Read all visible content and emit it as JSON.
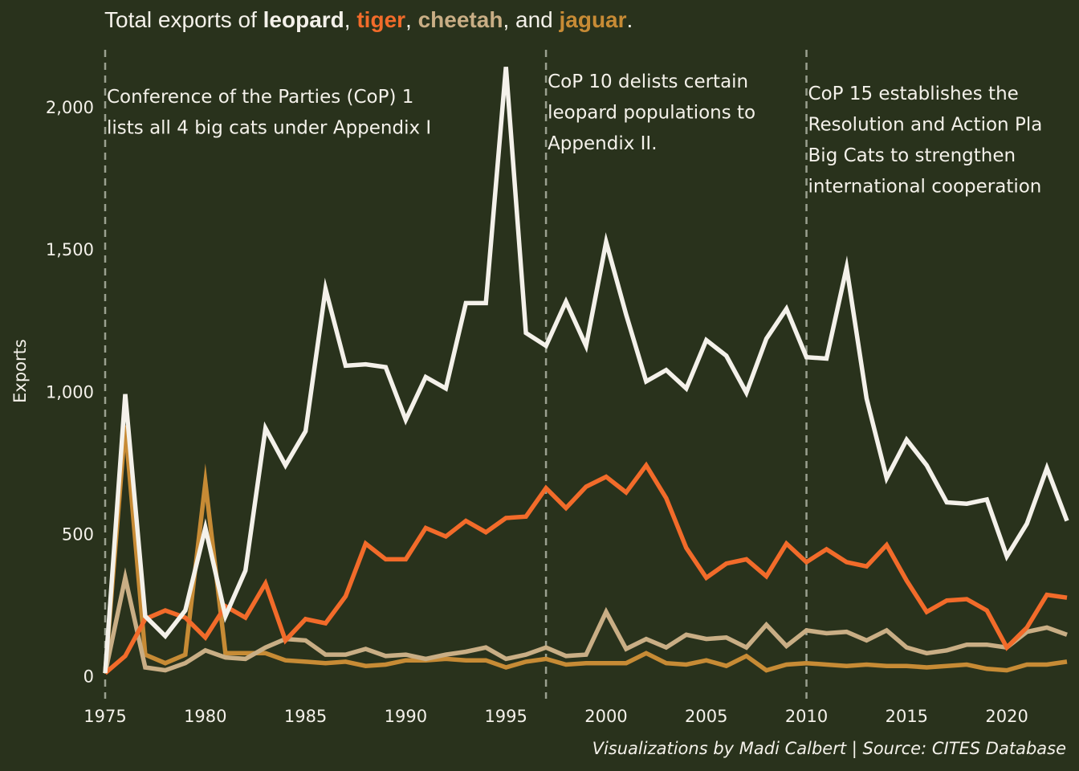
{
  "colors": {
    "background": "#29321c",
    "text": "#f4f1ea",
    "vline": "#9aa08f"
  },
  "title": {
    "prefix": "Total exports of ",
    "sep1": ", ",
    "sep2": ", ",
    "sep3": ", and ",
    "suffix": "."
  },
  "caption": "Visualizations by Madi Calbert | Source: CITES Database",
  "chart_data": {
    "type": "line",
    "title": "Total exports of leopard, tiger, cheetah, and jaguar.",
    "xlabel": "",
    "ylabel": "Exports",
    "xlim": [
      1975,
      2023
    ],
    "ylim": [
      -80,
      2200
    ],
    "grid": false,
    "legend": "in title",
    "x_ticks": [
      1975,
      1980,
      1985,
      1990,
      1995,
      2000,
      2005,
      2010,
      2015,
      2020
    ],
    "y_ticks": [
      0,
      500,
      1000,
      1500,
      2000
    ],
    "y_tick_labels": [
      "0",
      "500",
      "1,000",
      "1,500",
      "2,000"
    ],
    "x": [
      1975,
      1976,
      1977,
      1978,
      1979,
      1980,
      1981,
      1982,
      1983,
      1984,
      1985,
      1986,
      1987,
      1988,
      1989,
      1990,
      1991,
      1992,
      1993,
      1994,
      1995,
      1996,
      1997,
      1998,
      1999,
      2000,
      2001,
      2002,
      2003,
      2004,
      2005,
      2006,
      2007,
      2008,
      2009,
      2010,
      2011,
      2012,
      2013,
      2014,
      2015,
      2016,
      2017,
      2018,
      2019,
      2020,
      2021,
      2022,
      2023
    ],
    "series": [
      {
        "name": "leopard",
        "color": "#f4f1ea",
        "values": [
          10,
          990,
          210,
          140,
          230,
          520,
          210,
          370,
          870,
          740,
          860,
          1360,
          1090,
          1095,
          1085,
          900,
          1050,
          1010,
          1310,
          1310,
          2140,
          1205,
          1160,
          1315,
          1160,
          1525,
          1270,
          1035,
          1075,
          1010,
          1180,
          1125,
          995,
          1185,
          1290,
          1120,
          1115,
          1435,
          975,
          695,
          830,
          740,
          610,
          605,
          620,
          420,
          535,
          730,
          545
        ]
      },
      {
        "name": "tiger",
        "color": "#f26b2a",
        "values": [
          10,
          70,
          200,
          230,
          205,
          135,
          245,
          205,
          325,
          125,
          200,
          185,
          280,
          465,
          410,
          410,
          520,
          490,
          545,
          505,
          555,
          560,
          660,
          590,
          665,
          700,
          645,
          740,
          625,
          450,
          345,
          395,
          410,
          350,
          465,
          400,
          445,
          400,
          385,
          460,
          335,
          225,
          265,
          270,
          230,
          100,
          170,
          285,
          275
        ]
      },
      {
        "name": "cheetah",
        "color": "#c9ae85",
        "values": [
          10,
          345,
          30,
          20,
          45,
          90,
          65,
          60,
          100,
          130,
          125,
          75,
          75,
          95,
          70,
          75,
          60,
          75,
          85,
          100,
          60,
          75,
          100,
          70,
          75,
          225,
          95,
          130,
          100,
          145,
          130,
          135,
          100,
          180,
          105,
          160,
          150,
          155,
          125,
          160,
          100,
          80,
          90,
          110,
          110,
          100,
          155,
          170,
          145
        ]
      },
      {
        "name": "jaguar",
        "color": "#c78b35",
        "values": [
          10,
          880,
          75,
          45,
          75,
          680,
          80,
          80,
          80,
          55,
          50,
          45,
          50,
          35,
          40,
          55,
          55,
          60,
          55,
          55,
          30,
          50,
          60,
          40,
          45,
          45,
          45,
          80,
          45,
          40,
          55,
          35,
          70,
          20,
          40,
          45,
          40,
          35,
          40,
          35,
          35,
          30,
          35,
          40,
          25,
          20,
          40,
          40,
          50
        ]
      }
    ],
    "events": [
      {
        "year": 1975,
        "text": [
          "Conference of the Parties (CoP) 1",
          "lists all 4 big cats under Appendix I"
        ]
      },
      {
        "year": 1997,
        "text": [
          "CoP 10 delists certain",
          "leopard populations to",
          "Appendix II."
        ]
      },
      {
        "year": 2010,
        "text": [
          "CoP 15 establishes the",
          "Resolution and Action Pla",
          "Big Cats to strengthen",
          "international cooperation"
        ]
      }
    ]
  }
}
